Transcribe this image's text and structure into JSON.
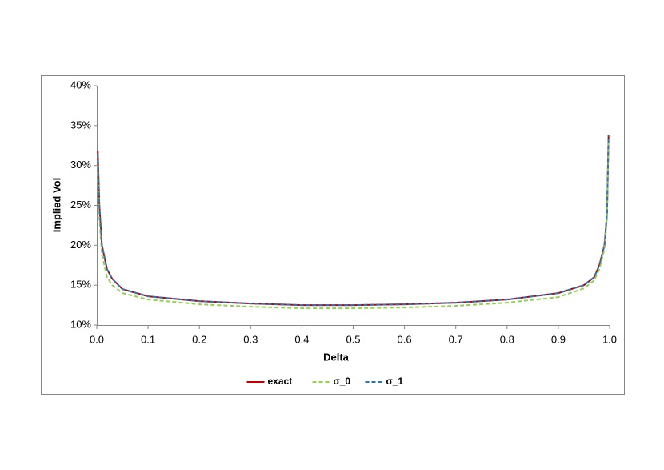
{
  "chart_data": {
    "type": "line",
    "x_label": "Delta",
    "y_label": "Implied Vol",
    "x": [
      0.002,
      0.005,
      0.01,
      0.02,
      0.03,
      0.05,
      0.1,
      0.2,
      0.3,
      0.4,
      0.5,
      0.6,
      0.7,
      0.8,
      0.9,
      0.95,
      0.97,
      0.98,
      0.99,
      0.995,
      0.998
    ],
    "series": [
      {
        "name": "exact",
        "color": "#c00000",
        "dashed": false,
        "values": [
          31.8,
          25,
          20,
          17,
          15.8,
          14.5,
          13.6,
          13,
          12.7,
          12.5,
          12.5,
          12.6,
          12.8,
          13.2,
          14,
          15,
          16,
          17.5,
          20,
          24,
          33.8
        ]
      },
      {
        "name": "σ_0",
        "color": "#92d050",
        "dashed": true,
        "values": [
          30,
          23.5,
          18.8,
          16,
          15,
          14,
          13.2,
          12.6,
          12.3,
          12.1,
          12.1,
          12.2,
          12.4,
          12.8,
          13.5,
          14.6,
          15.6,
          17,
          19.5,
          23.5,
          33
        ]
      },
      {
        "name": "σ_1",
        "color": "#2e75b6",
        "dashed": true,
        "values": [
          31.5,
          25,
          20,
          17,
          15.8,
          14.5,
          13.6,
          13,
          12.7,
          12.5,
          12.5,
          12.6,
          12.8,
          13.2,
          14,
          15,
          16,
          17.5,
          20,
          24,
          33.8
        ]
      }
    ],
    "xlim": [
      0,
      1
    ],
    "xticks": [
      {
        "value": 0,
        "label": "0.0"
      },
      0.1,
      0.2,
      0.3,
      0.4,
      0.5,
      0.6,
      0.7,
      0.8,
      0.9,
      {
        "value": 1,
        "label": "1.0"
      }
    ],
    "ylim": [
      10,
      40
    ],
    "yticks": [
      {
        "value": 10,
        "label": "10%"
      },
      {
        "value": 15,
        "label": "15%"
      },
      {
        "value": 20,
        "label": "20%"
      },
      {
        "value": 25,
        "label": "25%"
      },
      {
        "value": 30,
        "label": "30%"
      },
      {
        "value": 35,
        "label": "35%"
      },
      {
        "value": 40,
        "label": "40%"
      }
    ],
    "grid": false,
    "legend": "bottom"
  }
}
